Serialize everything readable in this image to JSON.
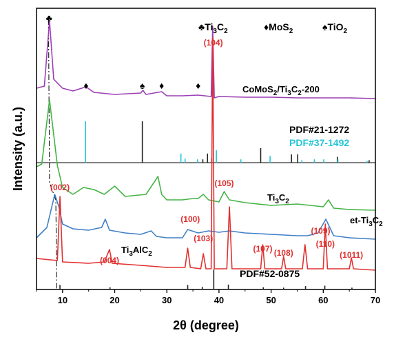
{
  "chart_data": {
    "type": "line",
    "xlabel": "2θ (degree)",
    "ylabel": "Intensity (a.u.)",
    "xlim": [
      5,
      70
    ],
    "x_ticks": [
      10,
      20,
      30,
      40,
      50,
      60,
      70
    ],
    "legend": {
      "position": "top-right",
      "items": [
        {
          "symbol": "♣",
          "label": "Ti",
          "sub1": "3",
          "label2": "C",
          "sub2": "2"
        },
        {
          "symbol": "♦",
          "label": "MoS",
          "sub1": "2",
          "label2": "",
          "sub2": ""
        },
        {
          "symbol": "♠",
          "label": "TiO",
          "sub1": "2",
          "label2": "",
          "sub2": ""
        }
      ]
    },
    "series": [
      {
        "name": "CoMoS2/Ti3C2-200",
        "label_parts": [
          "CoMoS",
          "2",
          "/Ti",
          "3",
          "C",
          "2",
          "-200"
        ],
        "color": "#9b3fb5",
        "points": [
          [
            5,
            128
          ],
          [
            6.5,
            125
          ],
          [
            7.5,
            30
          ],
          [
            8.3,
            115
          ],
          [
            10,
            128
          ],
          [
            12,
            132
          ],
          [
            14.5,
            126
          ],
          [
            16,
            134
          ],
          [
            20,
            137
          ],
          [
            25,
            135
          ],
          [
            25.4,
            131
          ],
          [
            26,
            137
          ],
          [
            29,
            133
          ],
          [
            30,
            139
          ],
          [
            33,
            139
          ],
          [
            36,
            138
          ],
          [
            38.5,
            140
          ],
          [
            38.8,
            38
          ],
          [
            39.1,
            142
          ],
          [
            40,
            140
          ],
          [
            45,
            141
          ],
          [
            50,
            141
          ],
          [
            55,
            142
          ],
          [
            60,
            142
          ],
          [
            65,
            142
          ],
          [
            70,
            143
          ]
        ],
        "markers": [
          {
            "x": 7.4,
            "symbol": "♣"
          },
          {
            "x": 14.5,
            "symbol": "♦"
          },
          {
            "x": 25.3,
            "symbol": "♠"
          },
          {
            "x": 29.0,
            "symbol": "♦"
          },
          {
            "x": 36.0,
            "symbol": "♦"
          }
        ],
        "annotations": [
          {
            "x": 38.9,
            "text": "(104)"
          }
        ]
      },
      {
        "name": "Ti3C2",
        "label_parts": [
          "Ti",
          "3",
          "C",
          "2"
        ],
        "color": "#44b444",
        "points": [
          [
            5,
            242
          ],
          [
            6,
            238
          ],
          [
            7.5,
            145
          ],
          [
            9,
            240
          ],
          [
            10,
            272
          ],
          [
            12,
            282
          ],
          [
            14,
            272
          ],
          [
            16,
            275
          ],
          [
            18,
            282
          ],
          [
            20,
            270
          ],
          [
            22,
            285
          ],
          [
            26,
            282
          ],
          [
            28.3,
            256
          ],
          [
            29,
            282
          ],
          [
            30,
            290
          ],
          [
            33,
            290
          ],
          [
            35,
            288
          ],
          [
            36,
            288
          ],
          [
            37,
            282
          ],
          [
            38,
            290
          ],
          [
            40,
            293
          ],
          [
            41,
            278
          ],
          [
            42,
            290
          ],
          [
            45,
            294
          ],
          [
            50,
            298
          ],
          [
            55,
            296
          ],
          [
            60,
            300
          ],
          [
            61,
            290
          ],
          [
            62,
            302
          ],
          [
            65,
            304
          ],
          [
            70,
            305
          ]
        ],
        "annotations": [
          {
            "x": 41,
            "text": "(105)"
          }
        ]
      },
      {
        "name": "et-Ti3C2",
        "label_parts": [
          "et-Ti",
          "3",
          "C",
          "2"
        ],
        "color": "#3f7fc6",
        "points": [
          [
            5,
            345
          ],
          [
            7,
            330
          ],
          [
            8.5,
            282
          ],
          [
            9.3,
            300
          ],
          [
            10,
            325
          ],
          [
            12,
            332
          ],
          [
            15,
            334
          ],
          [
            17.5,
            330
          ],
          [
            18.2,
            318
          ],
          [
            19,
            334
          ],
          [
            22,
            338
          ],
          [
            25,
            340
          ],
          [
            27,
            335
          ],
          [
            28,
            343
          ],
          [
            30,
            345
          ],
          [
            33,
            345
          ],
          [
            34,
            333
          ],
          [
            36,
            338
          ],
          [
            38,
            335
          ],
          [
            40,
            337
          ],
          [
            42,
            335
          ],
          [
            45,
            338
          ],
          [
            50,
            340
          ],
          [
            55,
            342
          ],
          [
            57,
            342
          ],
          [
            59,
            338
          ],
          [
            60.5,
            318
          ],
          [
            62,
            342
          ],
          [
            65,
            345
          ],
          [
            70,
            347
          ]
        ],
        "annotations": [
          {
            "x": 34.5,
            "text": "(100)"
          },
          {
            "x": 59.5,
            "text": "(109)"
          }
        ]
      },
      {
        "name": "Ti3AlC2",
        "label_parts": [
          "Ti",
          "3",
          "AlC",
          "2"
        ],
        "color": "#e03030",
        "points": [
          [
            5,
            375
          ],
          [
            9,
            378
          ],
          [
            9.5,
            285
          ],
          [
            10,
            380
          ],
          [
            15,
            382
          ],
          [
            18,
            380
          ],
          [
            19,
            362
          ],
          [
            19.5,
            382
          ],
          [
            25,
            385
          ],
          [
            30,
            388
          ],
          [
            33.5,
            388
          ],
          [
            34,
            360
          ],
          [
            34.5,
            388
          ],
          [
            36.5,
            390
          ],
          [
            37,
            368
          ],
          [
            37.5,
            390
          ],
          [
            38.5,
            390
          ],
          [
            38.8,
            55
          ],
          [
            39.1,
            390
          ],
          [
            41.5,
            390
          ],
          [
            42,
            300
          ],
          [
            42.5,
            390
          ],
          [
            45,
            390
          ],
          [
            48,
            390
          ],
          [
            48.4,
            355
          ],
          [
            48.8,
            390
          ],
          [
            52,
            390
          ],
          [
            52.4,
            372
          ],
          [
            52.8,
            390
          ],
          [
            56,
            390
          ],
          [
            56.5,
            355
          ],
          [
            57,
            390
          ],
          [
            60,
            390
          ],
          [
            60.4,
            325
          ],
          [
            60.8,
            390
          ],
          [
            65,
            390
          ],
          [
            65.4,
            374
          ],
          [
            65.8,
            390
          ],
          [
            70,
            392
          ]
        ],
        "annotations": [
          {
            "x": 9.5,
            "text": "(002)"
          },
          {
            "x": 19,
            "text": "(004)"
          },
          {
            "x": 37,
            "text": "(103)"
          },
          {
            "x": 48.4,
            "text": "(107)"
          },
          {
            "x": 52.4,
            "text": "(108)"
          },
          {
            "x": 60.4,
            "text": "(110)"
          },
          {
            "x": 65.4,
            "text": "(1011)"
          }
        ]
      }
    ],
    "references": [
      {
        "name": "PDF#21-1272",
        "color": "#222222",
        "peaks": [
          [
            25.3,
            100
          ],
          [
            36.9,
            8
          ],
          [
            37.8,
            22
          ],
          [
            38.6,
            10
          ],
          [
            48.0,
            35
          ],
          [
            53.9,
            20
          ],
          [
            55.1,
            20
          ],
          [
            62.7,
            14
          ],
          [
            68.8,
            6
          ]
        ]
      },
      {
        "name": "PDF#37-1492",
        "color": "#22c4d6",
        "peaks": [
          [
            14.4,
            100
          ],
          [
            32.7,
            22
          ],
          [
            33.5,
            10
          ],
          [
            35.9,
            8
          ],
          [
            39.5,
            30
          ],
          [
            44.2,
            8
          ],
          [
            49.8,
            16
          ],
          [
            55.9,
            6
          ],
          [
            58.3,
            8
          ],
          [
            60.1,
            8
          ],
          [
            62.8,
            8
          ],
          [
            68.4,
            4
          ]
        ]
      },
      {
        "name": "PDF#52-0875",
        "color": "#222222",
        "peaks": [
          [
            9.5,
            20
          ],
          [
            19.1,
            8
          ],
          [
            34.0,
            20
          ],
          [
            36.8,
            10
          ],
          [
            39.0,
            100
          ],
          [
            41.8,
            22
          ],
          [
            48.5,
            8
          ],
          [
            52.4,
            6
          ],
          [
            56.6,
            14
          ],
          [
            60.3,
            16
          ],
          [
            65.5,
            6
          ]
        ]
      }
    ]
  }
}
